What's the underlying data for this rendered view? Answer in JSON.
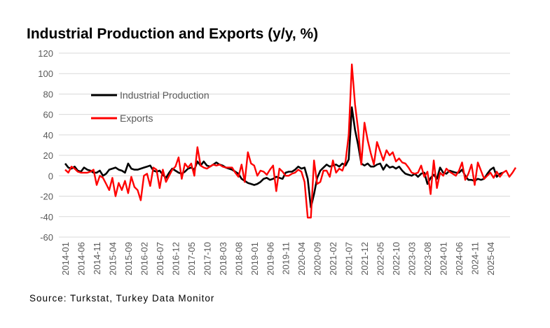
{
  "chart_data": {
    "type": "line",
    "title": "Industrial Production and Exports (y/y, %)",
    "source": "Source: Turkstat, Turkey Data Monitor",
    "xlabel": "",
    "ylabel": "",
    "ylim": [
      -60,
      120
    ],
    "yticks": [
      -60,
      -40,
      -20,
      0,
      20,
      40,
      60,
      80,
      100,
      120
    ],
    "grid": true,
    "legend_position": "top-left",
    "x_start": "2014-01",
    "x_end": "2025-04",
    "xtick_labels": [
      "2014-01",
      "2014-06",
      "2014-11",
      "2015-04",
      "2015-09",
      "2016-02",
      "2016-07",
      "2016-12",
      "2017-05",
      "2017-10",
      "2018-03",
      "2018-08",
      "2019-01",
      "2019-06",
      "2019-11",
      "2020-04",
      "2020-09",
      "2021-02",
      "2021-07",
      "2021-12",
      "2022-05",
      "2022-10",
      "2023-03",
      "2023-08",
      "2024-01",
      "2024-06",
      "2024-11",
      "2025-04"
    ],
    "series": [
      {
        "name": "Industrial Production",
        "color": "#000000",
        "values": [
          12,
          8,
          7,
          9,
          5,
          4,
          8,
          6,
          5,
          3,
          3,
          5,
          0,
          2,
          6,
          7,
          8,
          6,
          5,
          3,
          12,
          7,
          6,
          6,
          7,
          8,
          9,
          10,
          5,
          4,
          5,
          1,
          -2,
          3,
          7,
          5,
          3,
          2,
          4,
          7,
          8,
          6,
          14,
          10,
          14,
          10,
          9,
          11,
          13,
          11,
          10,
          8,
          7,
          6,
          4,
          2,
          -3,
          -5,
          -7,
          -8,
          -9,
          -8,
          -6,
          -3,
          -2,
          -4,
          -3,
          -1,
          -2,
          -3,
          3,
          4,
          4,
          6,
          9,
          7,
          8,
          -3,
          -31,
          -18,
          -2,
          5,
          8,
          11,
          9,
          10,
          11,
          9,
          12,
          10,
          16,
          67,
          45,
          30,
          12,
          10,
          12,
          9,
          9,
          11,
          12,
          6,
          11,
          8,
          9,
          7,
          9,
          5,
          2,
          1,
          0,
          2,
          -1,
          2,
          3,
          -8,
          -2,
          1,
          -3,
          8,
          3,
          2,
          5,
          4,
          3,
          3,
          6,
          0,
          -4,
          -4,
          -5,
          -3,
          -4,
          -3,
          2,
          6,
          8,
          -1,
          2,
          3
        ]
      },
      {
        "name": "Exports",
        "color": "#ff0000",
        "values": [
          6,
          3,
          9,
          7,
          4,
          3,
          3,
          3,
          4,
          6,
          -9,
          0,
          -2,
          -8,
          -14,
          -2,
          -20,
          -7,
          -14,
          -5,
          -17,
          -1,
          -11,
          -14,
          -24,
          0,
          2,
          -10,
          8,
          6,
          -12,
          6,
          -6,
          0,
          6,
          9,
          18,
          -3,
          12,
          8,
          12,
          0,
          28,
          10,
          8,
          7,
          9,
          11,
          10,
          11,
          9,
          8,
          8,
          8,
          3,
          -1,
          11,
          -6,
          23,
          12,
          10,
          0,
          5,
          4,
          1,
          6,
          10,
          -15,
          7,
          4,
          0,
          0,
          2,
          3,
          6,
          4,
          -6,
          -41,
          -41,
          15,
          -8,
          -6,
          5,
          5,
          -1,
          15,
          3,
          7,
          5,
          14,
          40,
          109,
          70,
          45,
          11,
          52,
          35,
          22,
          11,
          33,
          24,
          15,
          25,
          20,
          23,
          14,
          17,
          13,
          12,
          8,
          3,
          2,
          3,
          10,
          -1,
          4,
          -18,
          15,
          -12,
          3,
          0,
          7,
          4,
          2,
          0,
          5,
          13,
          -4,
          2,
          11,
          -9,
          13,
          5,
          -3,
          0,
          3,
          -2,
          4,
          -1,
          3,
          5,
          -1,
          3,
          8
        ]
      }
    ]
  }
}
